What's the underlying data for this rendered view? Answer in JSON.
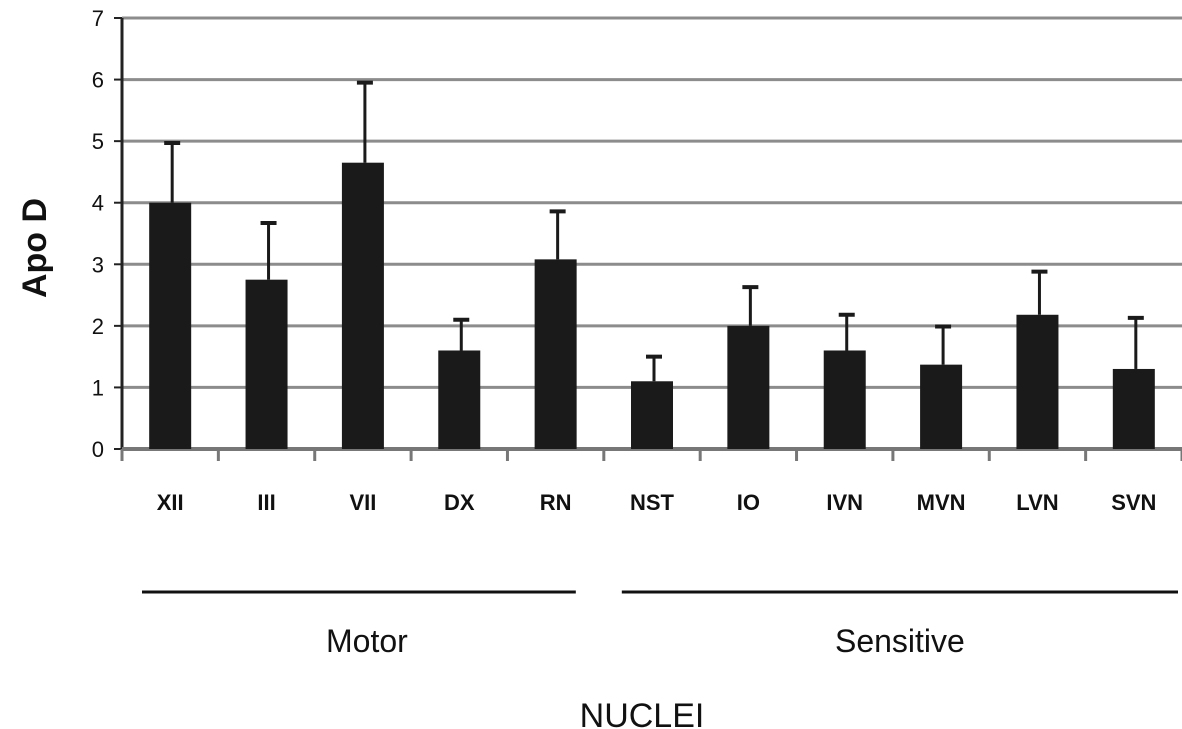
{
  "chart_data": {
    "type": "bar",
    "ylabel": "Apo D",
    "xlabel": "NUCLEI",
    "ylim": [
      0,
      7
    ],
    "yticks": [
      0,
      1,
      2,
      3,
      4,
      5,
      6,
      7
    ],
    "grid": true,
    "categories": [
      "XII",
      "III",
      "VII",
      "DX",
      "RN",
      "NST",
      "IO",
      "IVN",
      "MVN",
      "LVN",
      "SVN"
    ],
    "values": [
      4.0,
      2.75,
      4.65,
      1.6,
      3.08,
      1.1,
      2.0,
      1.6,
      1.37,
      2.18,
      1.3
    ],
    "errors": [
      0.97,
      0.92,
      1.3,
      0.5,
      0.78,
      0.4,
      0.63,
      0.58,
      0.62,
      0.7,
      0.83
    ],
    "colors": {
      "bar": "#1a1a1a",
      "grid": "#8c8c8c",
      "axis": "#222222"
    },
    "groups": [
      {
        "label": "Motor",
        "categories": [
          "XII",
          "III",
          "VII",
          "DX",
          "RN"
        ]
      },
      {
        "label": "Sensitive",
        "categories": [
          "NST",
          "IO",
          "IVN",
          "MVN",
          "LVN",
          "SVN"
        ]
      }
    ]
  }
}
